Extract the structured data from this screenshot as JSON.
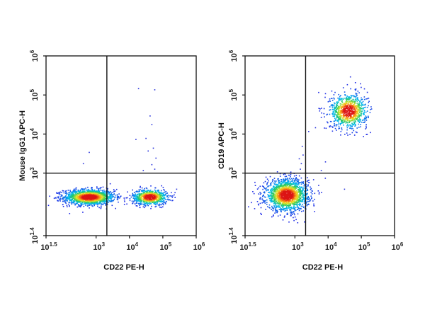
{
  "chart_data": [
    {
      "type": "scatter",
      "style": "density-dot-plot",
      "xlabel": "CD22 PE-H",
      "ylabel": "Mouse IgG1 APC-H",
      "x_scale": "log",
      "y_scale": "log",
      "xlim": [
        31.6,
        1000000
      ],
      "ylim": [
        25.1,
        1000000
      ],
      "x_ticks": [
        {
          "base": "10",
          "exp": "1.5",
          "value": 31.6
        },
        {
          "base": "10",
          "exp": "3",
          "value": 1000
        },
        {
          "base": "10",
          "exp": "4",
          "value": 10000
        },
        {
          "base": "10",
          "exp": "5",
          "value": 100000
        },
        {
          "base": "10",
          "exp": "6",
          "value": 1000000
        }
      ],
      "y_ticks": [
        {
          "base": "10",
          "exp": "1.4",
          "value": 25.1
        },
        {
          "base": "10",
          "exp": "3",
          "value": 1000
        },
        {
          "base": "10",
          "exp": "4",
          "value": 10000
        },
        {
          "base": "10",
          "exp": "5",
          "value": 100000
        },
        {
          "base": "10",
          "exp": "6",
          "value": 1000000
        }
      ],
      "quadrant_gate": {
        "x": 2100,
        "y": 1000
      },
      "populations": [
        {
          "center_x": 600,
          "center_y": 250,
          "spread_x_decades": 0.38,
          "spread_y_decades": 0.1,
          "events": 1500
        },
        {
          "center_x": 40000,
          "center_y": 250,
          "spread_x_decades": 0.26,
          "spread_y_decades": 0.1,
          "events": 800
        }
      ],
      "scattered_events": [
        {
          "x": 18000,
          "y": 150000
        },
        {
          "x": 55000,
          "y": 140000
        },
        {
          "x": 40000,
          "y": 30000
        },
        {
          "x": 45000,
          "y": 18000
        },
        {
          "x": 30000,
          "y": 8000
        },
        {
          "x": 15000,
          "y": 7500
        },
        {
          "x": 50000,
          "y": 4500
        },
        {
          "x": 35000,
          "y": 3800
        },
        {
          "x": 60000,
          "y": 2500
        },
        {
          "x": 45000,
          "y": 1700
        },
        {
          "x": 55000,
          "y": 1300
        },
        {
          "x": 25000,
          "y": 1200
        },
        {
          "x": 600,
          "y": 3500
        },
        {
          "x": 400,
          "y": 1800
        },
        {
          "x": 250000,
          "y": 400
        }
      ]
    },
    {
      "type": "scatter",
      "style": "density-dot-plot",
      "xlabel": "CD22 PE-H",
      "ylabel": "CD19 APC-H",
      "x_scale": "log",
      "y_scale": "log",
      "xlim": [
        31.6,
        1000000
      ],
      "ylim": [
        25.1,
        1000000
      ],
      "x_ticks": [
        {
          "base": "10",
          "exp": "1.5",
          "value": 31.6
        },
        {
          "base": "10",
          "exp": "3",
          "value": 1000
        },
        {
          "base": "10",
          "exp": "4",
          "value": 10000
        },
        {
          "base": "10",
          "exp": "5",
          "value": 100000
        },
        {
          "base": "10",
          "exp": "6",
          "value": 1000000
        }
      ],
      "y_ticks": [
        {
          "base": "10",
          "exp": "1.4",
          "value": 25.1
        },
        {
          "base": "10",
          "exp": "3",
          "value": 1000
        },
        {
          "base": "10",
          "exp": "4",
          "value": 10000
        },
        {
          "base": "10",
          "exp": "5",
          "value": 100000
        },
        {
          "base": "10",
          "exp": "6",
          "value": 1000000
        }
      ],
      "quadrant_gate": {
        "x": 2100,
        "y": 1000
      },
      "populations": [
        {
          "center_x": 550,
          "center_y": 280,
          "spread_x_decades": 0.32,
          "spread_y_decades": 0.2,
          "events": 1700
        },
        {
          "center_x": 40000,
          "center_y": 40000,
          "spread_x_decades": 0.28,
          "spread_y_decades": 0.22,
          "events": 900
        }
      ],
      "scattered_events": [
        {
          "x": 1500,
          "y": 1800
        },
        {
          "x": 1700,
          "y": 3000
        },
        {
          "x": 1400,
          "y": 1300
        },
        {
          "x": 1600,
          "y": 5000
        },
        {
          "x": 1300,
          "y": 2400
        },
        {
          "x": 2500,
          "y": 12000
        },
        {
          "x": 5000,
          "y": 500
        },
        {
          "x": 30000,
          "y": 400
        },
        {
          "x": 8000,
          "y": 2000
        },
        {
          "x": 45000,
          "y": 300000
        },
        {
          "x": 90000,
          "y": 200000
        },
        {
          "x": 4000,
          "y": 15000
        },
        {
          "x": 3500,
          "y": 700
        },
        {
          "x": 6000,
          "y": 1200
        }
      ]
    }
  ]
}
